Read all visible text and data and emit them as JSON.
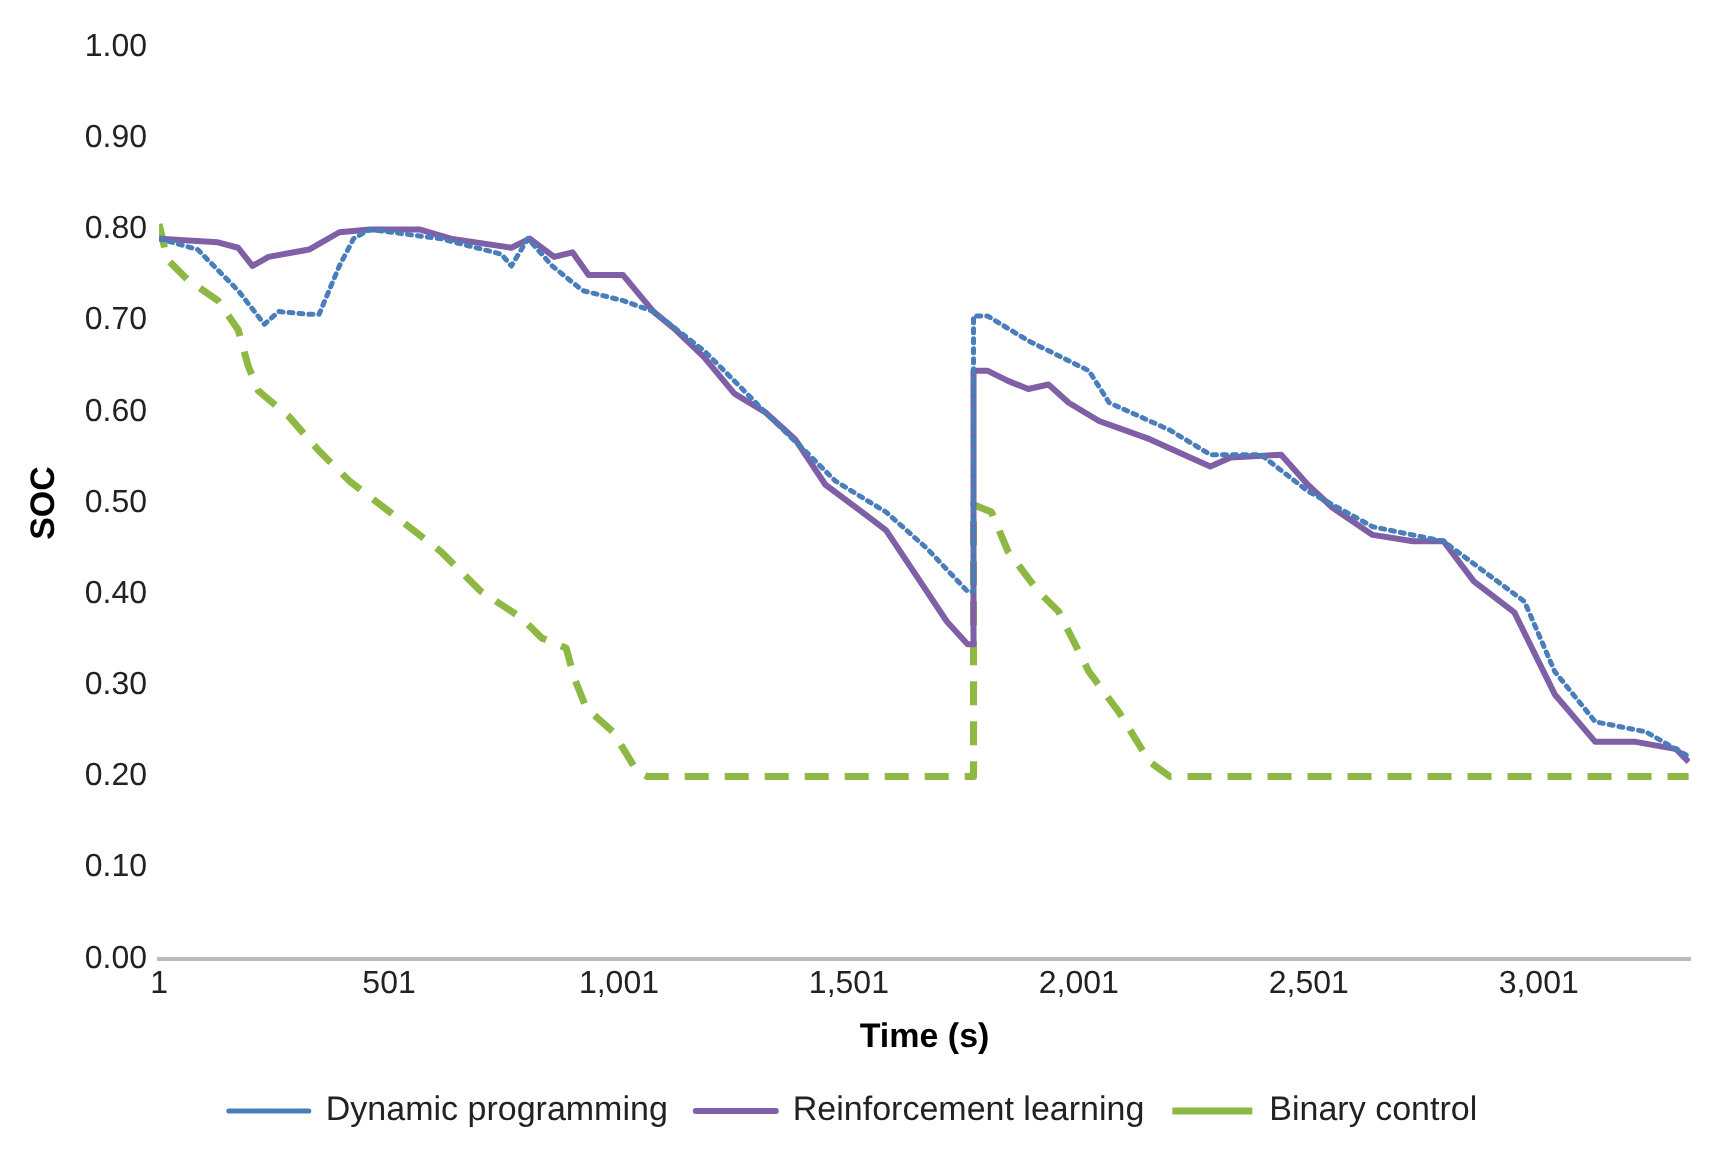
{
  "chart_data": {
    "type": "line",
    "xlabel": "Time (s)",
    "ylabel": "SOC",
    "xlim": [
      1,
      3330
    ],
    "xticks": [
      1,
      501,
      {
        "value": 1001,
        "label": "1,001"
      },
      {
        "value": 1501,
        "label": "1,501"
      },
      {
        "value": 2001,
        "label": "2,001"
      },
      {
        "value": 2501,
        "label": "2,501"
      },
      {
        "value": 3001,
        "label": "3,001"
      }
    ],
    "ylim": [
      0,
      1
    ],
    "yticks": [
      {
        "value": 0,
        "label": "0.00"
      },
      {
        "value": 0.1,
        "label": "0.10"
      },
      {
        "value": 0.2,
        "label": "0.20"
      },
      {
        "value": 0.3,
        "label": "0.30"
      },
      {
        "value": 0.4,
        "label": "0.40"
      },
      {
        "value": 0.5,
        "label": "0.50"
      },
      {
        "value": 0.6,
        "label": "0.60"
      },
      {
        "value": 0.7,
        "label": "0.70"
      },
      {
        "value": 0.8,
        "label": "0.80"
      },
      {
        "value": 0.9,
        "label": "0.90"
      },
      {
        "value": 1,
        "label": "1.00"
      }
    ],
    "grid": false,
    "legend": "bottom",
    "marker": "none",
    "series": [
      {
        "name": "Dynamic programming",
        "color": "#4a7ebb",
        "line_style": "dotted",
        "x": [
          1,
          85,
          173,
          230,
          261,
          327,
          349,
          393,
          424,
          459,
          613,
          745,
          767,
          803,
          856,
          922,
          1010,
          1076,
          1186,
          1252,
          1318,
          1406,
          1472,
          1582,
          1671,
          1759,
          1772,
          1772,
          1803,
          1891,
          2023,
          2067,
          2199,
          2287,
          2397,
          2499,
          2640,
          2794,
          2882,
          2970,
          3036,
          3124,
          3234,
          3327
        ],
        "values": [
          0.79,
          0.778,
          0.733,
          0.696,
          0.71,
          0.707,
          0.707,
          0.76,
          0.79,
          0.8,
          0.79,
          0.773,
          0.76,
          0.79,
          0.76,
          0.733,
          0.722,
          0.71,
          0.667,
          0.634,
          0.6,
          0.557,
          0.524,
          0.49,
          0.45,
          0.403,
          0.403,
          0.705,
          0.705,
          0.678,
          0.645,
          0.61,
          0.58,
          0.553,
          0.553,
          0.513,
          0.474,
          0.458,
          0.425,
          0.392,
          0.315,
          0.26,
          0.249,
          0.222
        ]
      },
      {
        "name": "Reinforcement learning",
        "color": "#7f5fa5",
        "line_style": "solid",
        "x": [
          1,
          129,
          173,
          204,
          239,
          327,
          393,
          459,
          569,
          635,
          767,
          807,
          860,
          900,
          935,
          1010,
          1076,
          1124,
          1186,
          1252,
          1318,
          1384,
          1450,
          1530,
          1582,
          1648,
          1714,
          1759,
          1772,
          1772,
          1803,
          1847,
          1891,
          1935,
          1979,
          2045,
          2155,
          2243,
          2287,
          2331,
          2441,
          2499,
          2552,
          2640,
          2728,
          2794,
          2860,
          2948,
          3036,
          3124,
          3212,
          3300,
          3327
        ],
        "values": [
          0.79,
          0.786,
          0.78,
          0.76,
          0.77,
          0.778,
          0.797,
          0.8,
          0.8,
          0.79,
          0.78,
          0.79,
          0.77,
          0.775,
          0.75,
          0.75,
          0.71,
          0.69,
          0.66,
          0.62,
          0.6,
          0.57,
          0.52,
          0.49,
          0.47,
          0.42,
          0.37,
          0.345,
          0.345,
          0.645,
          0.645,
          0.634,
          0.625,
          0.63,
          0.61,
          0.59,
          0.57,
          0.55,
          0.54,
          0.55,
          0.553,
          0.52,
          0.495,
          0.465,
          0.458,
          0.458,
          0.414,
          0.38,
          0.29,
          0.238,
          0.238,
          0.23,
          0.216
        ]
      },
      {
        "name": "Binary control",
        "color": "#8db843",
        "line_style": "dashed",
        "x": [
          1,
          19,
          63,
          129,
          173,
          195,
          217,
          283,
          349,
          415,
          503,
          613,
          701,
          789,
          833,
          886,
          904,
          930,
          988,
          1041,
          1063,
          1772,
          1772,
          1811,
          1847,
          1913,
          1957,
          2023,
          2089,
          2155,
          2199,
          3327
        ],
        "values": [
          0.806,
          0.767,
          0.745,
          0.722,
          0.69,
          0.65,
          0.623,
          0.595,
          0.557,
          0.524,
          0.49,
          0.447,
          0.403,
          0.374,
          0.352,
          0.341,
          0.308,
          0.275,
          0.249,
          0.205,
          0.2,
          0.2,
          0.498,
          0.49,
          0.447,
          0.403,
          0.381,
          0.315,
          0.27,
          0.216,
          0.2,
          0.2
        ]
      }
    ]
  }
}
